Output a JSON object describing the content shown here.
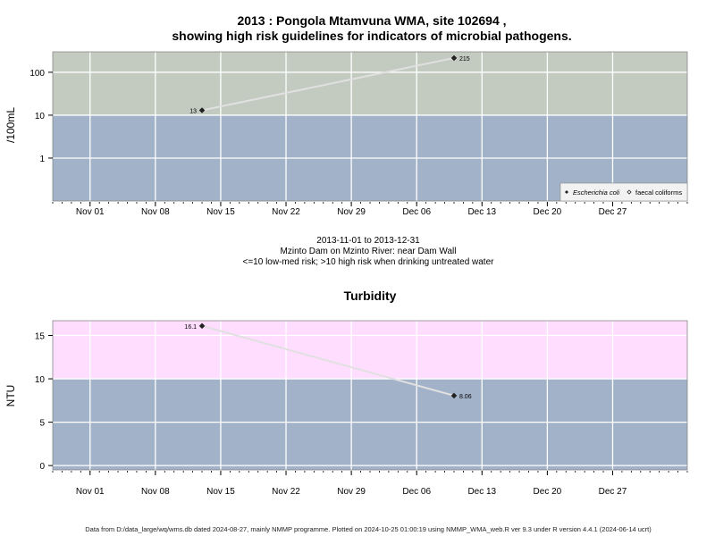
{
  "header": {
    "title_line1": "2013 : Pongola Mtamvuna WMA, site 102694 ,",
    "title_line2": "showing high risk guidelines for indicators of microbial pathogens."
  },
  "caption": {
    "date_range": "2013-11-01 to 2013-12-31",
    "site": "Mzinto Dam on Mzinto River: near Dam Wall",
    "risk_note": "<=10 low-med risk; >10 high risk when drinking untreated water"
  },
  "footer": {
    "text": "Data from D:/data_large/wq/wms.db dated 2024-08-27, mainly NMMP programme. Plotted on 2024-10-25 01:00:19 using NMMP_WMA_web.R ver 9.3 under R version 4.4.1 (2024-06-14 ucrt)"
  },
  "colors": {
    "low_band": "#a2b2c9",
    "high_band_microbial": "#c3cbc0",
    "high_band_turbidity": "#ffddff",
    "grid": "#ffffff",
    "line": "#e0e0e0",
    "point": "#222222"
  },
  "chart_data": [
    {
      "type": "line",
      "title": "",
      "xlabel": "",
      "ylabel": "/100mL",
      "y_scale": "log",
      "ylim": [
        0.1,
        300
      ],
      "xlim": [
        "2013-10-28",
        "2014-01-04"
      ],
      "x_ticks": [
        "Nov 01",
        "Nov 08",
        "Nov 15",
        "Nov 22",
        "Nov 29",
        "Dec 06",
        "Dec 13",
        "Dec 20",
        "Dec 27"
      ],
      "x_tick_dates": [
        "2013-11-01",
        "2013-11-08",
        "2013-11-15",
        "2013-11-22",
        "2013-11-29",
        "2013-12-06",
        "2013-12-13",
        "2013-12-20",
        "2013-12-27"
      ],
      "y_ticks": [
        1,
        10,
        100
      ],
      "y_tick_labels": [
        "1",
        "10",
        "100"
      ],
      "threshold": 10,
      "legend": {
        "position": "bottom-right",
        "entries": [
          {
            "label": "Escherichia coli",
            "marker": "filled-diamond",
            "italic": true
          },
          {
            "label": "faecal coliforms",
            "marker": "open-diamond",
            "italic": false
          }
        ]
      },
      "series": [
        {
          "name": "Escherichia coli",
          "x": [
            "2013-11-13",
            "2013-12-10"
          ],
          "values": [
            13,
            215
          ],
          "labels": [
            "13",
            "215"
          ]
        }
      ]
    },
    {
      "type": "line",
      "title": "Turbidity",
      "xlabel": "",
      "ylabel": "NTU",
      "y_scale": "linear",
      "ylim": [
        -0.5,
        16.7
      ],
      "xlim": [
        "2013-10-28",
        "2014-01-04"
      ],
      "x_ticks": [
        "Nov 01",
        "Nov 08",
        "Nov 15",
        "Nov 22",
        "Nov 29",
        "Dec 06",
        "Dec 13",
        "Dec 20",
        "Dec 27"
      ],
      "x_tick_dates": [
        "2013-11-01",
        "2013-11-08",
        "2013-11-15",
        "2013-11-22",
        "2013-11-29",
        "2013-12-06",
        "2013-12-13",
        "2013-12-20",
        "2013-12-27"
      ],
      "y_ticks": [
        0,
        5,
        10,
        15
      ],
      "y_tick_labels": [
        "0",
        "5",
        "10",
        "15"
      ],
      "threshold": 10,
      "series": [
        {
          "x": [
            "2013-11-13",
            "2013-12-10"
          ],
          "values": [
            16.1,
            8.06
          ],
          "labels": [
            "16.1",
            "8.06"
          ]
        }
      ]
    }
  ]
}
